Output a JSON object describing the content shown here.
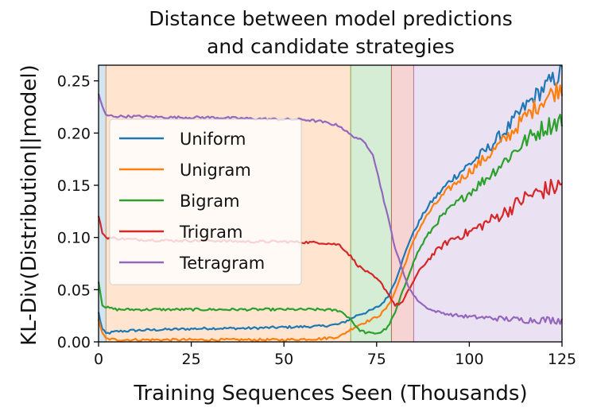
{
  "chart_data": {
    "type": "line",
    "title_lines": [
      "Distance between model predictions",
      "and candidate strategies"
    ],
    "xlabel": "Training Sequences Seen (Thousands)",
    "ylabel": "KL-Div(Distribution||model)",
    "xlim": [
      0,
      125
    ],
    "ylim": [
      0,
      0.265
    ],
    "xticks": [
      0,
      25,
      50,
      75,
      100,
      125
    ],
    "yticks": [
      0.0,
      0.05,
      0.1,
      0.15,
      0.2,
      0.25
    ],
    "xtick_labels": [
      "0",
      "25",
      "50",
      "75",
      "100",
      "125"
    ],
    "ytick_labels": [
      "0.00",
      "0.05",
      "0.10",
      "0.15",
      "0.20",
      "0.25"
    ],
    "grid": false,
    "legend_position": "upper-left",
    "phases": [
      {
        "name": "Uniform",
        "start": 0,
        "end": 2,
        "color": "#1f77b4"
      },
      {
        "name": "Unigram",
        "start": 2,
        "end": 68,
        "color": "#ff7f0e"
      },
      {
        "name": "Bigram",
        "start": 68,
        "end": 79,
        "color": "#2ca02c"
      },
      {
        "name": "Trigram",
        "start": 79,
        "end": 85,
        "color": "#d62728"
      },
      {
        "name": "Tetragram",
        "start": 85,
        "end": 125,
        "color": "#9467bd"
      }
    ],
    "series": [
      {
        "name": "Uniform",
        "color": "#1f77b4",
        "x": [
          0,
          1,
          2,
          5,
          10,
          20,
          30,
          40,
          50,
          60,
          65,
          68,
          70,
          72,
          74,
          76,
          78,
          80,
          82,
          84,
          86,
          88,
          90,
          92,
          95,
          100,
          105,
          110,
          115,
          120,
          125
        ],
        "y": [
          0.028,
          0.012,
          0.008,
          0.01,
          0.011,
          0.012,
          0.013,
          0.013,
          0.014,
          0.015,
          0.017,
          0.022,
          0.026,
          0.028,
          0.031,
          0.035,
          0.043,
          0.058,
          0.078,
          0.098,
          0.112,
          0.125,
          0.135,
          0.143,
          0.155,
          0.17,
          0.185,
          0.203,
          0.225,
          0.243,
          0.258
        ]
      },
      {
        "name": "Unigram",
        "color": "#ff7f0e",
        "x": [
          0,
          1,
          2,
          5,
          10,
          20,
          30,
          40,
          50,
          60,
          65,
          68,
          70,
          72,
          74,
          76,
          78,
          80,
          82,
          84,
          86,
          88,
          90,
          92,
          95,
          100,
          105,
          110,
          115,
          120,
          125
        ],
        "y": [
          0.022,
          0.008,
          0.003,
          0.002,
          0.002,
          0.002,
          0.002,
          0.002,
          0.002,
          0.003,
          0.005,
          0.012,
          0.016,
          0.019,
          0.022,
          0.026,
          0.034,
          0.048,
          0.068,
          0.088,
          0.105,
          0.118,
          0.128,
          0.137,
          0.148,
          0.163,
          0.178,
          0.195,
          0.215,
          0.232,
          0.245
        ]
      },
      {
        "name": "Bigram",
        "color": "#2ca02c",
        "x": [
          0,
          1,
          2,
          5,
          10,
          20,
          30,
          40,
          50,
          60,
          65,
          68,
          70,
          72,
          74,
          76,
          78,
          80,
          82,
          84,
          86,
          88,
          90,
          92,
          95,
          100,
          105,
          110,
          115,
          120,
          125
        ],
        "y": [
          0.058,
          0.036,
          0.033,
          0.031,
          0.031,
          0.031,
          0.031,
          0.031,
          0.031,
          0.031,
          0.03,
          0.022,
          0.012,
          0.009,
          0.008,
          0.009,
          0.014,
          0.028,
          0.048,
          0.068,
          0.085,
          0.098,
          0.108,
          0.118,
          0.128,
          0.143,
          0.158,
          0.175,
          0.192,
          0.205,
          0.213
        ]
      },
      {
        "name": "Trigram",
        "color": "#d62728",
        "x": [
          0,
          1,
          2,
          5,
          10,
          20,
          30,
          40,
          50,
          60,
          65,
          68,
          70,
          72,
          74,
          76,
          78,
          80,
          82,
          84,
          86,
          88,
          90,
          92,
          95,
          100,
          105,
          110,
          115,
          120,
          125
        ],
        "y": [
          0.12,
          0.105,
          0.1,
          0.099,
          0.098,
          0.097,
          0.097,
          0.096,
          0.096,
          0.095,
          0.093,
          0.082,
          0.073,
          0.068,
          0.063,
          0.057,
          0.047,
          0.035,
          0.038,
          0.052,
          0.065,
          0.075,
          0.083,
          0.09,
          0.098,
          0.105,
          0.115,
          0.125,
          0.138,
          0.145,
          0.15
        ]
      },
      {
        "name": "Tetragram",
        "color": "#9467bd",
        "x": [
          0,
          1,
          2,
          5,
          10,
          20,
          30,
          40,
          50,
          55,
          60,
          65,
          68,
          70,
          72,
          74,
          76,
          78,
          80,
          82,
          84,
          86,
          88,
          90,
          95,
          100,
          105,
          110,
          115,
          120,
          125
        ],
        "y": [
          0.238,
          0.225,
          0.217,
          0.216,
          0.216,
          0.215,
          0.215,
          0.214,
          0.213,
          0.213,
          0.211,
          0.207,
          0.198,
          0.195,
          0.19,
          0.18,
          0.15,
          0.12,
          0.09,
          0.068,
          0.05,
          0.04,
          0.034,
          0.03,
          0.026,
          0.024,
          0.023,
          0.022,
          0.021,
          0.021,
          0.021
        ]
      }
    ]
  }
}
